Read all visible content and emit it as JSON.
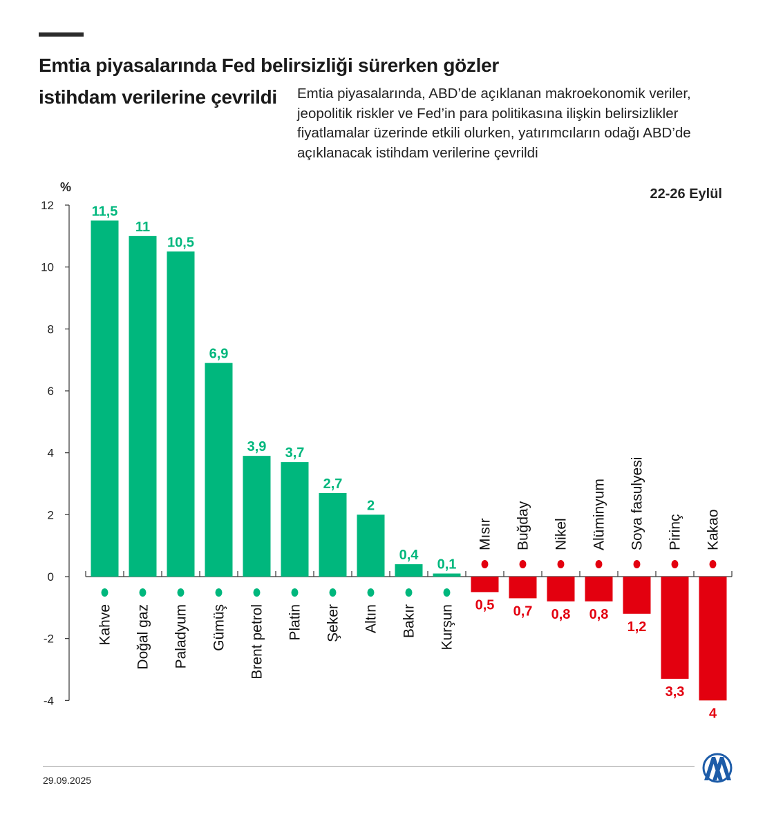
{
  "header": {
    "title_line1": "Emtia piyasalarında Fed belirsizliği sürerken gözler",
    "title_line2": "istihdam verilerine çevrildi",
    "subtitle": "Emtia piyasalarında, ABD’de açıklanan makroekonomik veriler, jeopolitik riskler ve Fed’in para politikasına ilişkin belirsizlikler fiyatlamalar üzerinde etkili olurken, yatırımcıların odağı ABD’de açıklanacak istihdam verilerine çevrildi"
  },
  "footer": {
    "date": "29.09.2025",
    "logo_text": "AA"
  },
  "colors": {
    "positive": "#00b77d",
    "negative": "#e3000f",
    "axis": "#333333"
  },
  "chart_data": {
    "type": "bar",
    "ylabel": "%",
    "period_label": "22-26 Eylül",
    "ylim": [
      -4,
      12
    ],
    "yticks": [
      12,
      10,
      8,
      6,
      4,
      2,
      0,
      -2,
      -4
    ],
    "ytick_labels": [
      "12",
      "10",
      "8",
      "6",
      "4",
      "2",
      "0",
      "-2",
      "-4"
    ],
    "grid": false,
    "categories": [
      "Kahve",
      "Doğal gaz",
      "Paladyum",
      "Gümüş",
      "Brent petrol",
      "Platin",
      "Şeker",
      "Altın",
      "Bakır",
      "Kurşun",
      "Mısır",
      "Buğday",
      "Nikel",
      "Alüminyum",
      "Soya fasulyesi",
      "Pirinç",
      "Kakao"
    ],
    "icons": [
      "coffee-bean-icon",
      "gas-drop-icon",
      "metal-ingots-icon",
      "metal-ingots-icon",
      "oil-barrel-icon",
      "metal-ingots-icon",
      "sugar-sack-icon",
      "metal-ingots-icon",
      "metal-ingots-icon",
      "metal-ingots-icon",
      "corn-icon",
      "wheat-icon",
      "metal-ingots-icon",
      "metal-ingots-icon",
      "soybean-icon",
      "rice-sack-icon",
      "cocoa-icon"
    ],
    "values": [
      11.5,
      11,
      10.5,
      6.9,
      3.9,
      3.7,
      2.7,
      2,
      0.4,
      0.1,
      -0.5,
      -0.7,
      -0.8,
      -0.8,
      -1.2,
      -3.3,
      -4
    ],
    "value_labels": [
      "11,5",
      "11",
      "10,5",
      "6,9",
      "3,9",
      "3,7",
      "2,7",
      "2",
      "0,4",
      "0,1",
      "0,5",
      "0,7",
      "0,8",
      "0,8",
      "1,2",
      "3,3",
      "4"
    ]
  }
}
